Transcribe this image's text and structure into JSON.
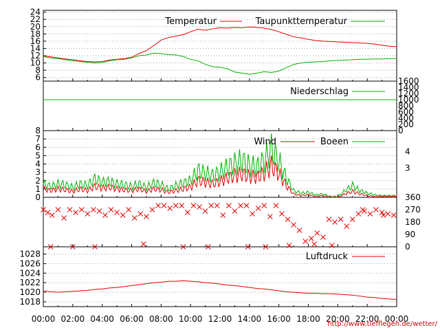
{
  "colors": {
    "red": "#e00000",
    "green": "#00b000",
    "grid": "#a0a0a0",
    "text": "#000000",
    "credit": "#d00000"
  },
  "footer": {
    "credit": "http://www.tiefflegen.de/wetter/"
  },
  "chart_data": [
    {
      "type": "line",
      "title": "",
      "x": [
        "00:00",
        "00:30",
        "01:00",
        "01:30",
        "02:00",
        "02:30",
        "03:00",
        "03:30",
        "04:00",
        "04:30",
        "05:00",
        "05:30",
        "06:00",
        "06:30",
        "07:00",
        "07:30",
        "08:00",
        "08:30",
        "09:00",
        "09:30",
        "10:00",
        "10:30",
        "11:00",
        "11:30",
        "12:00",
        "12:30",
        "13:00",
        "13:30",
        "14:00",
        "14:30",
        "15:00",
        "15:30",
        "16:00",
        "16:30",
        "17:00",
        "17:30",
        "18:00",
        "18:30",
        "19:00",
        "19:30",
        "20:00",
        "20:30",
        "21:00",
        "21:30",
        "22:00",
        "22:30",
        "23:00",
        "23:30",
        "24:00"
      ],
      "x_tick_labels": [
        "00:00",
        "02:00",
        "04:00",
        "06:00",
        "08:00",
        "10:00",
        "12:00",
        "14:00",
        "16:00",
        "18:00",
        "20:00",
        "22:00",
        "00:00"
      ],
      "y_tick_labels": [
        "6",
        "8",
        "10",
        "12",
        "14",
        "16",
        "18",
        "20",
        "22",
        "24"
      ],
      "ylim": [
        5,
        24.5
      ],
      "grid": true,
      "legend_position": "top-right",
      "series": [
        {
          "name": "Temperatur",
          "color": "#e00000",
          "values": [
            12.0,
            11.7,
            11.4,
            11.1,
            10.9,
            10.6,
            10.4,
            10.3,
            10.4,
            10.8,
            11.0,
            11.2,
            11.6,
            12.6,
            13.4,
            14.8,
            16.3,
            17.0,
            17.4,
            17.8,
            18.6,
            19.3,
            19.0,
            19.4,
            19.7,
            19.6,
            19.8,
            19.7,
            19.9,
            19.8,
            19.6,
            19.2,
            18.6,
            17.9,
            17.2,
            16.9,
            16.5,
            16.2,
            16.0,
            15.9,
            15.8,
            15.7,
            15.6,
            15.5,
            15.4,
            15.2,
            14.9,
            14.6,
            14.5
          ]
        },
        {
          "name": "Taupunkttemperatur",
          "color": "#00b000",
          "values": [
            11.8,
            11.4,
            11.2,
            10.9,
            10.6,
            10.4,
            10.2,
            10.0,
            10.1,
            10.6,
            10.9,
            11.0,
            11.4,
            12.0,
            12.2,
            12.7,
            12.6,
            12.3,
            12.2,
            11.8,
            11.0,
            10.6,
            9.6,
            9.0,
            8.8,
            8.4,
            7.5,
            7.2,
            6.9,
            7.2,
            7.6,
            7.4,
            7.8,
            8.7,
            9.6,
            10.0,
            10.2,
            10.3,
            10.4,
            10.6,
            10.7,
            10.8,
            10.9,
            11.0,
            11.0,
            11.1,
            11.1,
            11.2,
            11.2
          ]
        }
      ]
    },
    {
      "type": "line",
      "title": "",
      "x_tick_labels": [
        "00:00",
        "02:00",
        "04:00",
        "06:00",
        "08:00",
        "10:00",
        "12:00",
        "14:00",
        "16:00",
        "18:00",
        "20:00",
        "22:00",
        "00:00"
      ],
      "y_tick_labels": [
        "0",
        "200",
        "400",
        "600",
        "800",
        "1000",
        "1200",
        "1400",
        "1600"
      ],
      "ylim": [
        0,
        1600
      ],
      "y_axis_side": "right",
      "legend_position": "top-right",
      "series": [
        {
          "name": "Niederschlag",
          "color": "#00b000",
          "constant_value": 1000
        }
      ]
    },
    {
      "type": "line",
      "title": "",
      "x_tick_labels": [
        "00:00",
        "02:00",
        "04:00",
        "06:00",
        "08:00",
        "10:00",
        "12:00",
        "14:00",
        "16:00",
        "18:00",
        "20:00",
        "22:00",
        "00:00"
      ],
      "y_tick_labels": [
        "0",
        "1",
        "2",
        "3",
        "4",
        "5",
        "6",
        "7",
        "8"
      ],
      "y2_tick_labels": [
        "3",
        "4"
      ],
      "ylim": [
        0,
        8
      ],
      "legend_position": "top-right",
      "series": [
        {
          "name": "Wind",
          "color": "#e00000",
          "values": [
            1.0,
            0.8,
            1.0,
            0.9,
            0.7,
            1.0,
            0.8,
            1.3,
            1.1,
            1.2,
            1.0,
            0.9,
            0.8,
            1.0,
            0.7,
            1.0,
            0.9,
            0.6,
            0.8,
            1.0,
            1.2,
            2.0,
            1.8,
            1.6,
            1.9,
            2.3,
            2.6,
            2.8,
            2.5,
            2.4,
            2.9,
            3.8,
            2.8,
            1.4,
            0.4,
            0.2,
            0.3,
            0.1,
            0.2,
            0.0,
            0.0,
            0.4,
            0.7,
            0.4,
            0.2,
            0.1,
            0.1,
            0.1,
            0.1
          ]
        },
        {
          "name": "Boeen",
          "color": "#00b000",
          "values": [
            1.6,
            1.3,
            1.6,
            1.5,
            1.2,
            1.6,
            1.4,
            2.2,
            1.8,
            1.9,
            1.6,
            1.5,
            1.3,
            1.6,
            1.2,
            1.7,
            1.5,
            1.0,
            1.4,
            1.7,
            2.0,
            3.2,
            2.9,
            2.6,
            3.0,
            3.6,
            4.0,
            4.4,
            3.8,
            3.6,
            4.4,
            5.8,
            4.3,
            2.3,
            0.8,
            0.5,
            0.6,
            0.3,
            0.4,
            0.1,
            0.1,
            0.8,
            1.4,
            0.8,
            0.5,
            0.3,
            0.2,
            0.2,
            0.2
          ]
        }
      ]
    },
    {
      "type": "scatter",
      "title": "",
      "x_tick_labels": [
        "00:00",
        "02:00",
        "04:00",
        "06:00",
        "08:00",
        "10:00",
        "12:00",
        "14:00",
        "16:00",
        "18:00",
        "20:00",
        "22:00",
        "00:00"
      ],
      "y_tick_labels": [
        "0",
        "90",
        "180",
        "270",
        "360"
      ],
      "ylim": [
        0,
        360
      ],
      "y_axis_side": "right",
      "series": [
        {
          "name": "",
          "color": "#e00000",
          "x": [
            0,
            0.3,
            0.6,
            1,
            1.4,
            1.8,
            2.2,
            2.6,
            3,
            3.4,
            3.8,
            4.2,
            4.6,
            5,
            5.4,
            5.8,
            6.2,
            6.6,
            7,
            7.4,
            7.8,
            8.2,
            8.6,
            9,
            9.4,
            9.8,
            10.2,
            10.6,
            11,
            11.4,
            11.8,
            12.2,
            12.6,
            13,
            13.4,
            13.8,
            14.2,
            14.6,
            15,
            15.4,
            15.8,
            16.2,
            16.6,
            17,
            17.4,
            17.8,
            18.2,
            18.6,
            19,
            19.4,
            19.8,
            20.2,
            20.6,
            21,
            21.4,
            21.8,
            22.2,
            22.6,
            23,
            23.4,
            23.8,
            0.5,
            2,
            3.5,
            6.8,
            9.5,
            11.2,
            13.9,
            15.1,
            16.7,
            18.4,
            19.6,
            21.7,
            23.1
          ],
          "y": [
            270,
            250,
            230,
            270,
            210,
            270,
            250,
            270,
            240,
            270,
            260,
            230,
            270,
            250,
            230,
            270,
            210,
            240,
            220,
            270,
            300,
            300,
            280,
            300,
            300,
            250,
            300,
            290,
            260,
            300,
            300,
            230,
            300,
            260,
            300,
            300,
            240,
            280,
            300,
            220,
            300,
            240,
            200,
            160,
            120,
            40,
            60,
            100,
            70,
            200,
            180,
            200,
            150,
            200,
            240,
            260,
            240,
            270,
            250,
            240,
            230,
            0,
            0,
            0,
            20,
            0,
            0,
            0,
            0,
            10,
            20,
            10,
            270,
            230
          ]
        }
      ]
    },
    {
      "type": "line",
      "title": "",
      "x_tick_labels": [
        "00:00",
        "02:00",
        "04:00",
        "06:00",
        "08:00",
        "10:00",
        "12:00",
        "14:00",
        "16:00",
        "18:00",
        "20:00",
        "22:00",
        "00:00"
      ],
      "y_tick_labels": [
        "1018",
        "1020",
        "1022",
        "1024",
        "1026",
        "1028"
      ],
      "ylim": [
        1017,
        1029.5
      ],
      "grid": true,
      "legend_position": "top-right",
      "series": [
        {
          "name": "Luftdruck",
          "color": "#e00000",
          "values": [
            1020.3,
            1020.1,
            1020.0,
            1020.1,
            1020.2,
            1020.3,
            1020.4,
            1020.6,
            1020.7,
            1020.9,
            1021.0,
            1021.2,
            1021.4,
            1021.6,
            1021.8,
            1022.0,
            1022.1,
            1022.3,
            1022.3,
            1022.4,
            1022.3,
            1022.2,
            1022.0,
            1021.9,
            1021.7,
            1021.5,
            1021.4,
            1021.2,
            1021.0,
            1020.8,
            1020.7,
            1020.5,
            1020.3,
            1020.1,
            1020.0,
            1019.9,
            1019.8,
            1019.8,
            1019.7,
            1019.7,
            1019.6,
            1019.5,
            1019.4,
            1019.2,
            1019.0,
            1018.9,
            1018.7,
            1018.6,
            1018.5
          ]
        }
      ]
    }
  ]
}
